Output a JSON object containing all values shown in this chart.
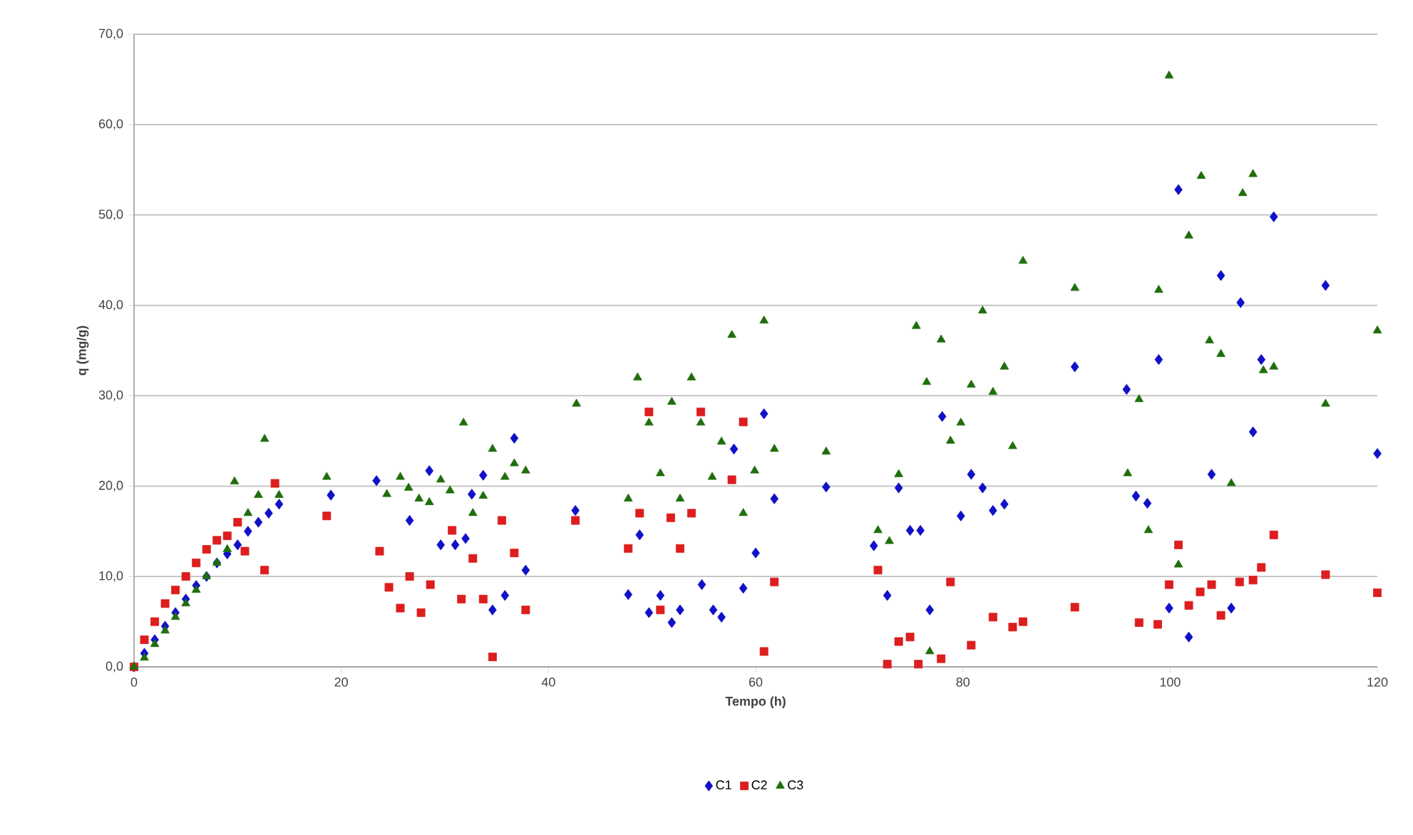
{
  "chart_data": {
    "type": "scatter",
    "xlabel": "Tempo (h)",
    "ylabel": "q (mg/g)",
    "xlim": [
      0,
      120
    ],
    "ylim": [
      0,
      70
    ],
    "xticks": [
      0,
      20,
      40,
      60,
      80,
      100,
      120
    ],
    "yticks": [
      {
        "value": 0,
        "label": "0,0"
      },
      {
        "value": 10,
        "label": "10,0"
      },
      {
        "value": 20,
        "label": "20,0"
      },
      {
        "value": 30,
        "label": "30,0"
      },
      {
        "value": 40,
        "label": "40,0"
      },
      {
        "value": 50,
        "label": "50,0"
      },
      {
        "value": 60,
        "label": "60,0"
      },
      {
        "value": 70,
        "label": "70,0"
      }
    ],
    "grid": "y",
    "legend": "bottom",
    "series": [
      {
        "name": "C1",
        "color": "#1010c8",
        "marker": "diamond",
        "x": [
          0,
          1,
          2,
          3,
          4,
          5,
          6,
          7,
          8,
          9,
          10,
          11,
          12,
          13,
          14,
          19,
          23.4,
          26.6,
          28.5,
          29.6,
          31,
          32,
          32.6,
          33.7,
          34.6,
          35.8,
          36.7,
          37.8,
          42.6,
          47.7,
          48.8,
          49.7,
          50.8,
          51.9,
          52.7,
          54.8,
          55.9,
          56.7,
          57.9,
          58.8,
          60,
          60.8,
          61.8,
          66.8,
          71.4,
          72.7,
          73.8,
          74.9,
          75.9,
          76.8,
          78,
          79.8,
          80.8,
          81.9,
          82.9,
          84,
          90.8,
          95.8,
          96.7,
          97.8,
          98.9,
          99.9,
          100.8,
          101.8,
          104,
          104.9,
          105.9,
          106.8,
          108,
          108.8,
          110,
          115,
          120
        ],
        "values": [
          0,
          1.5,
          3,
          4.5,
          6,
          7.5,
          9,
          10,
          11.5,
          12.5,
          13.5,
          15,
          16,
          17,
          18,
          19,
          20.6,
          16.2,
          21.7,
          13.5,
          13.5,
          14.2,
          19.1,
          21.2,
          6.3,
          7.9,
          25.3,
          10.7,
          17.3,
          8,
          14.6,
          6,
          7.9,
          4.9,
          6.3,
          9.1,
          6.3,
          5.5,
          24.1,
          8.7,
          12.6,
          28,
          18.6,
          19.9,
          13.4,
          7.9,
          19.8,
          15.1,
          15.1,
          6.3,
          27.7,
          16.7,
          21.3,
          19.8,
          17.3,
          18,
          33.2,
          30.7,
          18.9,
          18.1,
          34,
          6.5,
          52.8,
          3.3,
          21.3,
          43.3,
          6.5,
          40.3,
          26,
          34,
          49.8,
          42.2,
          23.6
        ]
      },
      {
        "name": "C2",
        "color": "#dc1e1e",
        "marker": "square",
        "x": [
          0,
          1,
          2,
          3,
          4,
          5,
          6,
          7,
          8,
          9,
          10,
          10.7,
          12.6,
          13.6,
          18.6,
          23.7,
          24.6,
          25.7,
          26.6,
          27.7,
          28.6,
          30.7,
          31.6,
          32.7,
          33.7,
          34.6,
          35.5,
          36.7,
          37.8,
          42.6,
          47.7,
          48.8,
          49.7,
          50.8,
          51.8,
          52.7,
          53.8,
          54.7,
          57.7,
          58.8,
          60.8,
          61.8,
          71.8,
          72.7,
          73.8,
          74.9,
          75.7,
          77.9,
          78.8,
          80.8,
          82.9,
          84.8,
          85.8,
          90.8,
          97,
          98.8,
          99.9,
          100.8,
          101.8,
          102.9,
          104,
          104.9,
          106.7,
          108,
          108.8,
          110,
          115,
          120
        ],
        "values": [
          0,
          3,
          5,
          7,
          8.5,
          10,
          11.5,
          13,
          14,
          14.5,
          16,
          12.8,
          10.7,
          20.3,
          16.7,
          12.8,
          8.8,
          6.5,
          10,
          6,
          9.1,
          15.1,
          7.5,
          12,
          7.5,
          1.1,
          16.2,
          12.6,
          6.3,
          16.2,
          13.1,
          17,
          28.2,
          6.3,
          16.5,
          13.1,
          17,
          28.2,
          20.7,
          27.1,
          1.7,
          9.4,
          10.7,
          0.3,
          2.8,
          3.3,
          0.3,
          0.9,
          9.4,
          2.4,
          5.5,
          4.4,
          5,
          6.6,
          4.9,
          4.7,
          9.1,
          13.5,
          6.8,
          8.3,
          9.1,
          5.7,
          9.4,
          9.6,
          11,
          14.6,
          10.2,
          8.2
        ]
      },
      {
        "name": "C3",
        "color": "#1f6e0c",
        "marker": "triangle",
        "x": [
          0,
          1,
          2,
          3,
          4,
          5,
          6,
          7,
          8,
          9,
          9.7,
          11,
          12,
          12.6,
          14,
          18.6,
          24.4,
          25.7,
          26.5,
          27.5,
          28.5,
          29.6,
          30.5,
          31.8,
          32.7,
          33.7,
          34.6,
          35.8,
          36.7,
          37.8,
          42.7,
          47.7,
          48.6,
          49.7,
          50.8,
          51.9,
          52.7,
          53.8,
          54.7,
          55.8,
          56.7,
          57.7,
          58.8,
          59.9,
          60.8,
          61.8,
          66.8,
          71.8,
          72.9,
          73.8,
          75.5,
          76.5,
          76.8,
          77.9,
          78.8,
          79.8,
          80.8,
          81.9,
          82.9,
          84,
          84.8,
          85.8,
          90.8,
          95.9,
          97,
          97.9,
          98.9,
          99.9,
          100.8,
          101.8,
          103,
          103.8,
          104.9,
          105.9,
          107,
          108,
          109,
          110,
          115,
          120
        ],
        "values": [
          0,
          1,
          2.5,
          4,
          5.5,
          7,
          8.5,
          10,
          11.5,
          13,
          20.5,
          17,
          19,
          25.2,
          19,
          21,
          19.1,
          21,
          19.8,
          18.6,
          18.2,
          20.7,
          19.5,
          27,
          17,
          18.9,
          24.1,
          21,
          22.5,
          21.7,
          29.1,
          18.6,
          32,
          27,
          21.4,
          29.3,
          18.6,
          32,
          27,
          21,
          24.9,
          36.7,
          17,
          21.7,
          38.3,
          24.1,
          23.8,
          15.1,
          13.9,
          21.3,
          37.7,
          31.5,
          1.7,
          36.2,
          25,
          27,
          31.2,
          39.4,
          30.4,
          33.2,
          24.4,
          44.9,
          41.9,
          21.4,
          29.6,
          15.1,
          41.7,
          65.4,
          11.3,
          47.7,
          54.3,
          36.1,
          34.6,
          20.3,
          52.4,
          54.5,
          32.8,
          33.2,
          29.1,
          37.2
        ]
      }
    ]
  }
}
